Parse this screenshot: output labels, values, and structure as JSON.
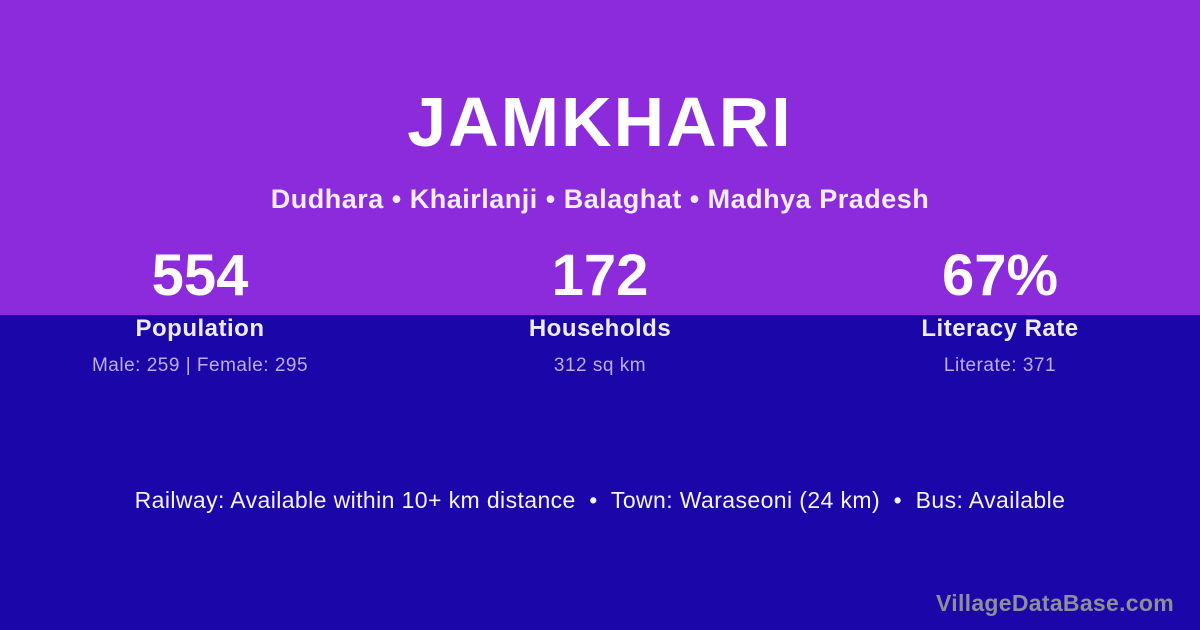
{
  "colors": {
    "top_background": "#8C2BDB",
    "bottom_background": "#1A06A9",
    "title_text": "#FFFFFF",
    "subtitle_text": "#F4ECFB",
    "label_text": "#EFEAF8",
    "detail_text": "#BDAEE6",
    "info_text": "#F6F3FB",
    "watermark_text": "#8E8E97"
  },
  "header": {
    "title": "JAMKHARI",
    "subtitle": "Dudhara • Khairlanji • Balaghat • Madhya Pradesh"
  },
  "stats": [
    {
      "value": "554",
      "label": "Population",
      "detail": "Male: 259 | Female: 295"
    },
    {
      "value": "172",
      "label": "Households",
      "detail": "312 sq km"
    },
    {
      "value": "67%",
      "label": "Literacy Rate",
      "detail": "Literate: 371"
    }
  ],
  "footer": {
    "info_line": "Railway: Available within 10+ km distance  •  Town: Waraseoni (24 km)  •  Bus: Available",
    "watermark": "VillageDataBase.com"
  }
}
